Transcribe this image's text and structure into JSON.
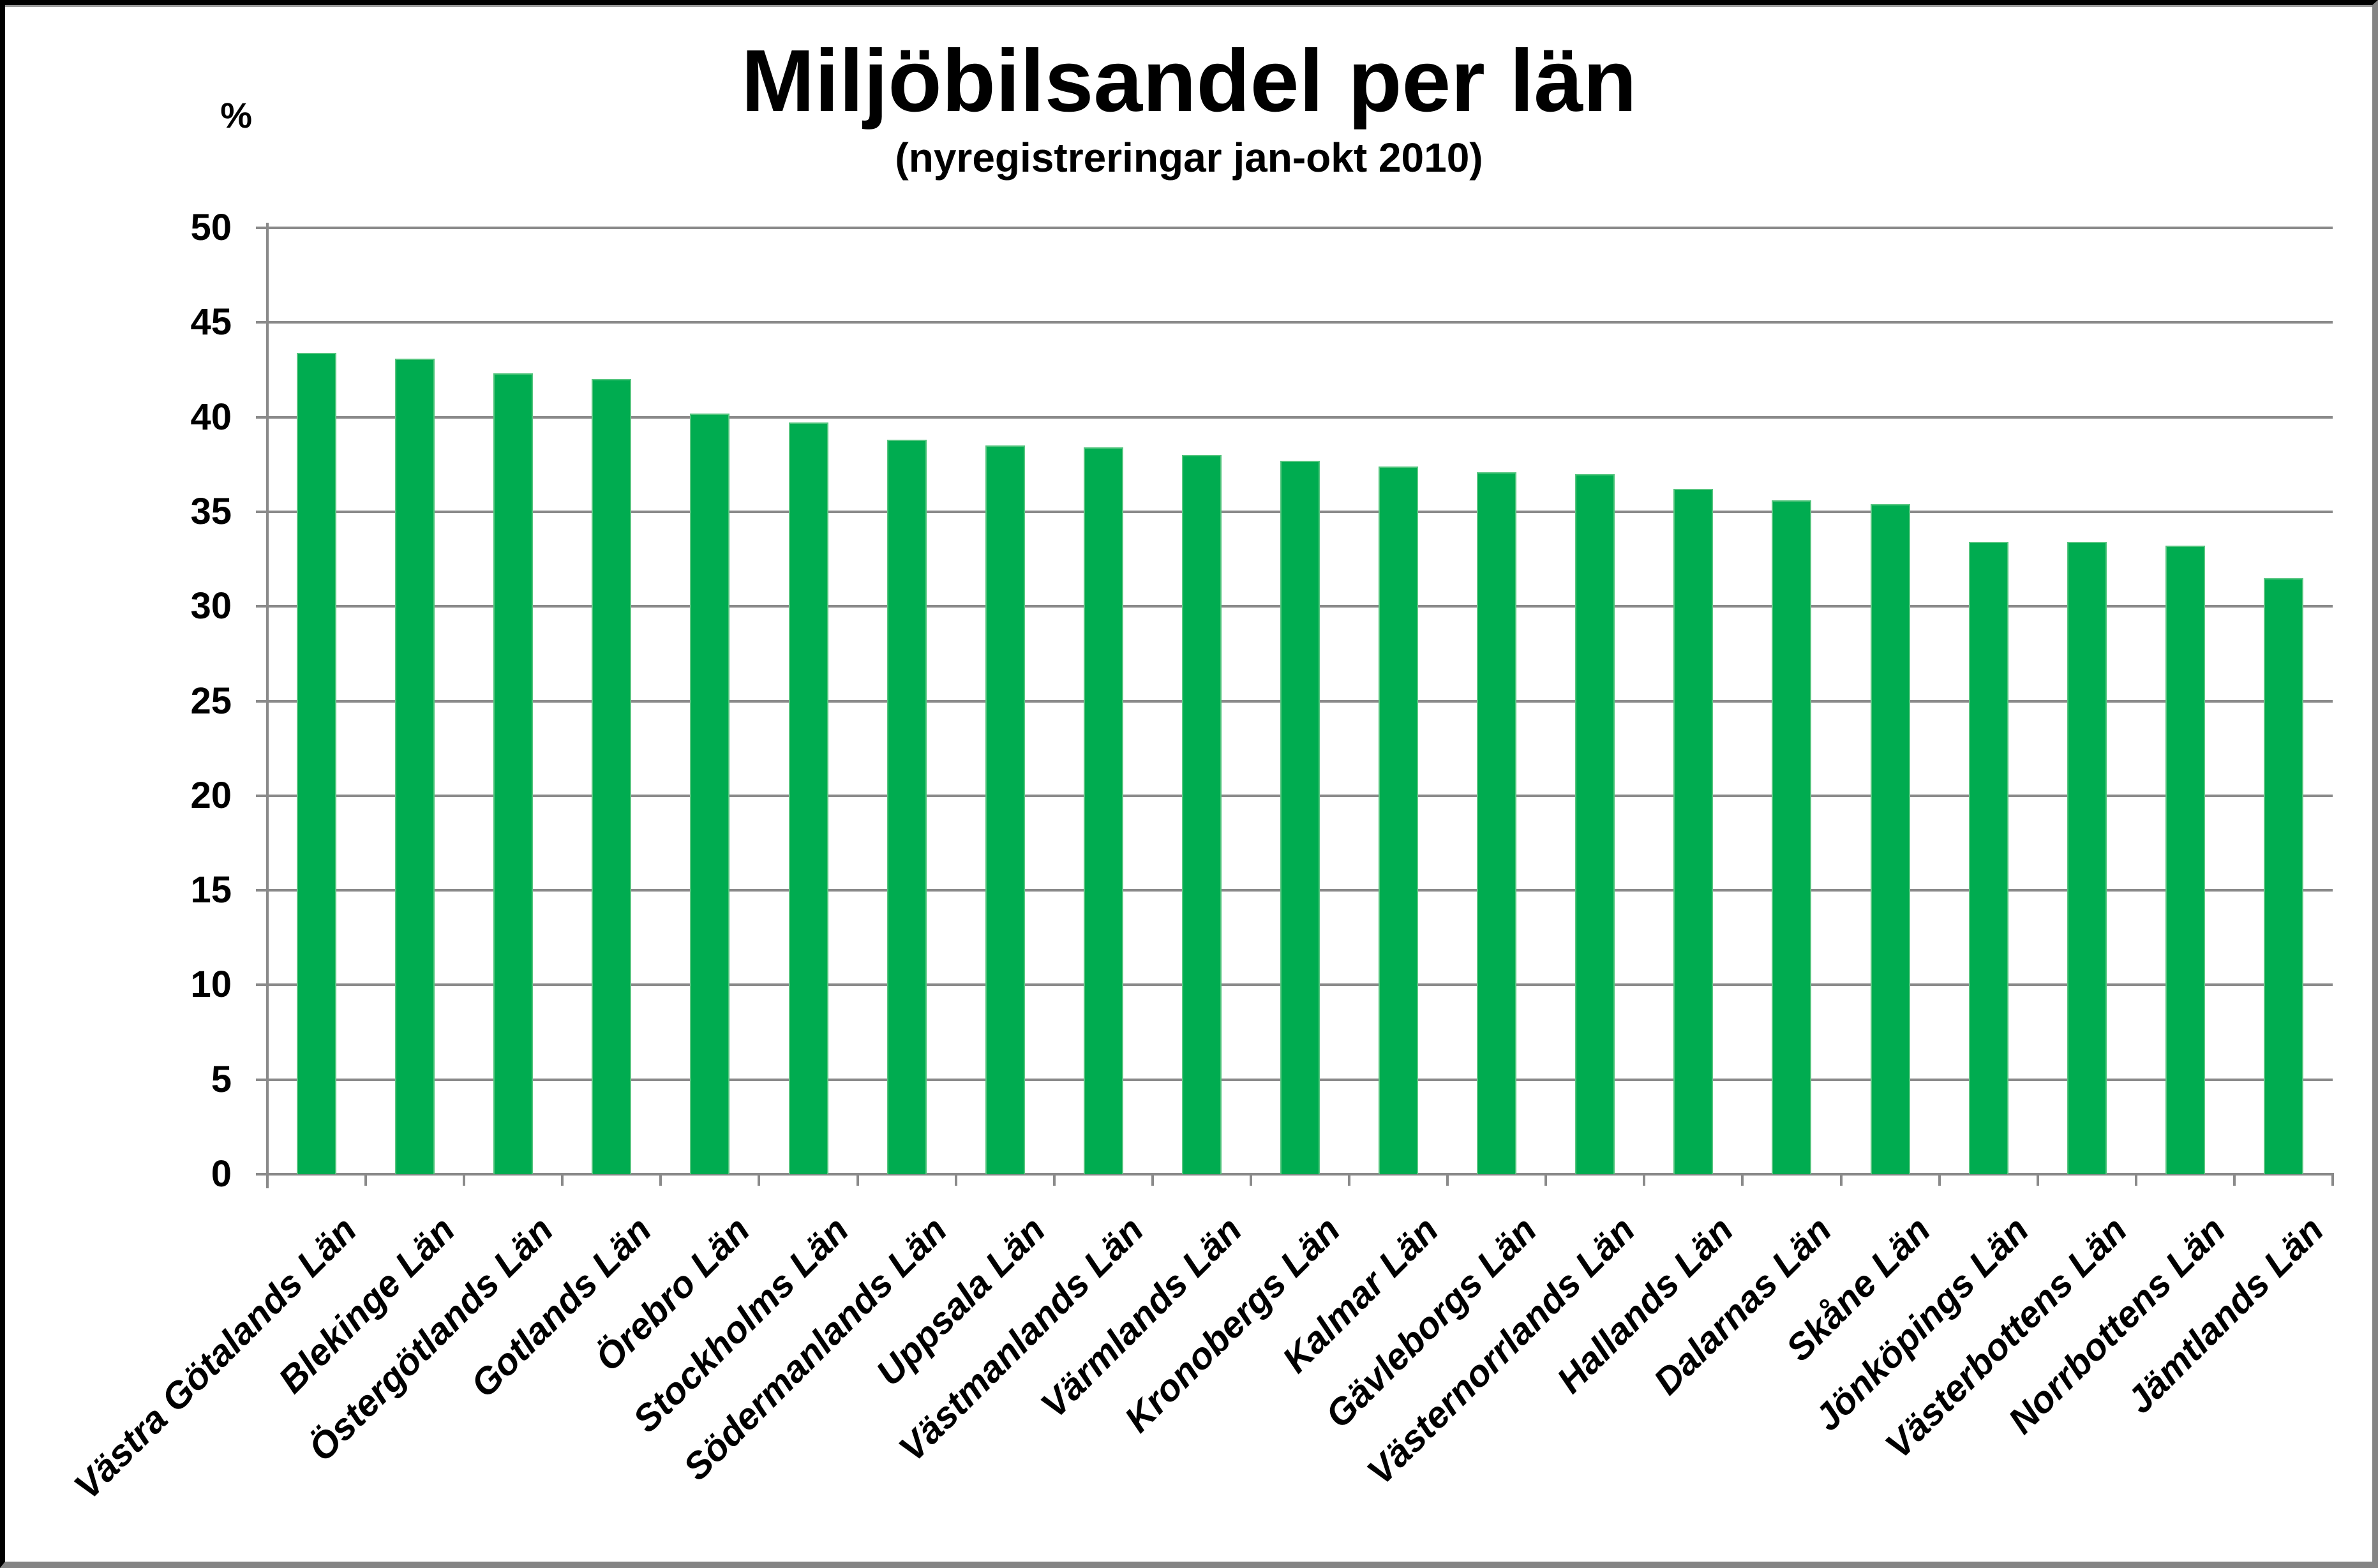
{
  "chart_data": {
    "type": "bar",
    "title": "Miljöbilsandel per län",
    "subtitle": "(nyregistreringar jan-okt 2010)",
    "y_axis_unit_label": "%",
    "categories": [
      "Västra Götalands Län",
      "Blekinge Län",
      "Östergötlands Län",
      "Gotlands Län",
      "Örebro Län",
      "Stockholms Län",
      "Södermanlands Län",
      "Uppsala Län",
      "Västmanlands Län",
      "Värmlands Län",
      "Kronobergs Län",
      "Kalmar Län",
      "Gävleborgs Län",
      "Västernorrlands Län",
      "Hallands Län",
      "Dalarnas Län",
      "Skåne Län",
      "Jönköpings Län",
      "Västerbottens Län",
      "Norrbottens Län",
      "Jämtlands Län"
    ],
    "values": [
      43.4,
      43.1,
      42.3,
      42.0,
      40.2,
      39.7,
      38.8,
      38.5,
      38.4,
      38.0,
      37.7,
      37.4,
      37.1,
      37.0,
      36.2,
      35.6,
      35.4,
      33.4,
      33.4,
      33.2,
      31.5
    ],
    "ylim": [
      0,
      50
    ],
    "y_tick_step": 5,
    "y_tick_labels": [
      "0",
      "5",
      "10",
      "15",
      "20",
      "25",
      "30",
      "35",
      "40",
      "45",
      "50"
    ],
    "xlabel": "",
    "ylabel": "%",
    "grid": "horizontal",
    "legend": "none",
    "x_label_rotation_deg": 45,
    "colors": {
      "bar_fill": "#00AC50",
      "bar_edge": "#55C57F",
      "grid_line": "#8A8A8A",
      "axis_line": "#8A8A8A",
      "text": "#000000",
      "background": "#FFFFFF",
      "frame_dark": "#000000",
      "frame_light": "#848484"
    }
  }
}
